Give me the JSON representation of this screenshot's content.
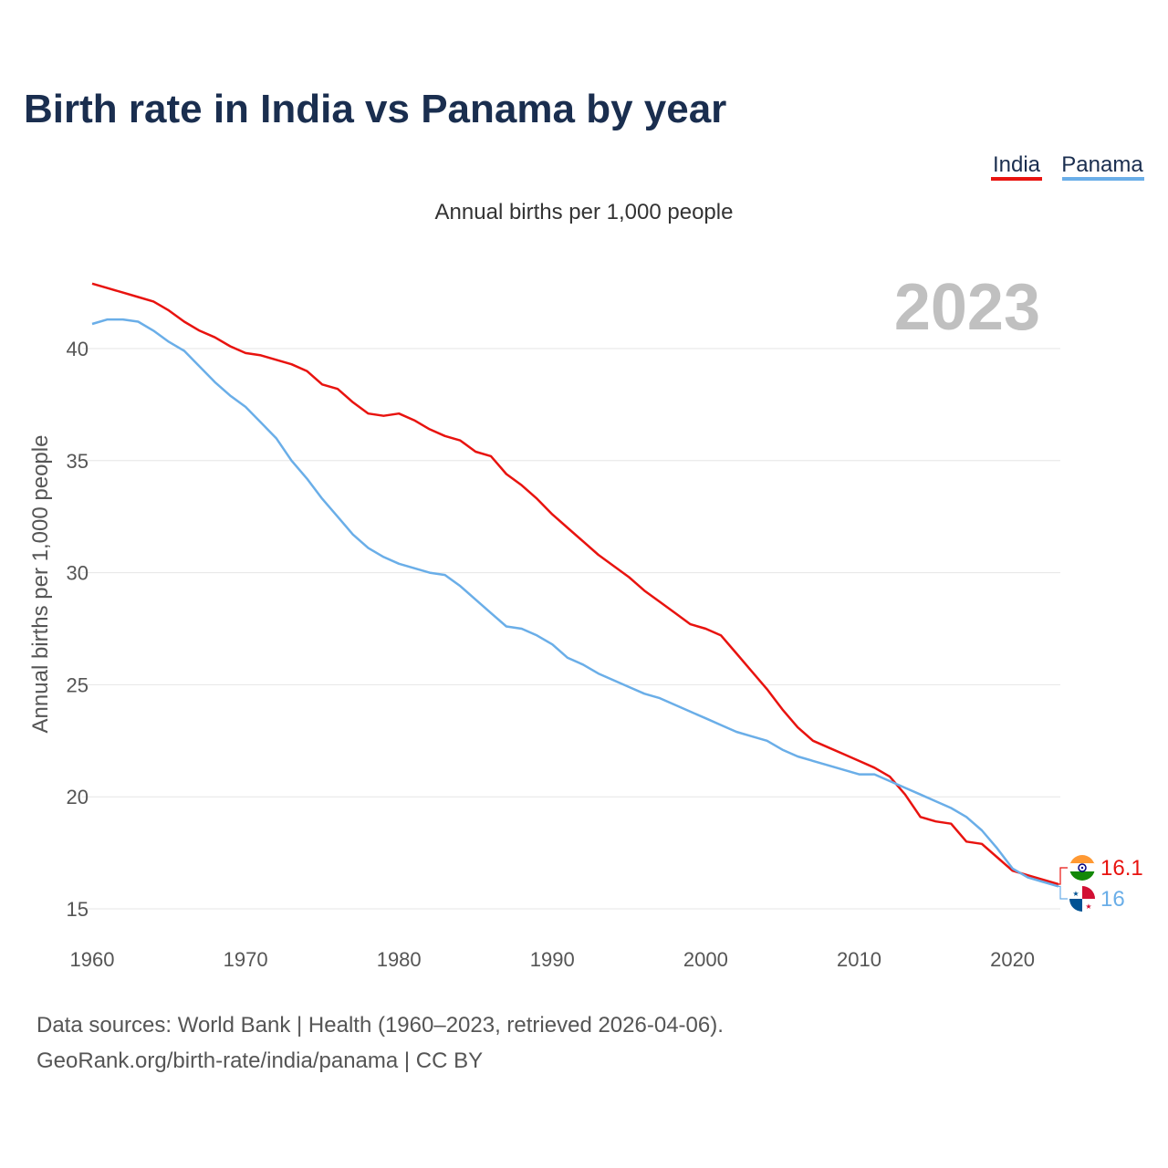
{
  "chart_data": {
    "type": "line",
    "title": "Birth rate in India vs Panama by year",
    "subtitle": "Annual births per 1,000 people",
    "xlabel": "",
    "ylabel": "Annual births per 1,000 people",
    "watermark_year": "2023",
    "xlim": [
      1960,
      2023
    ],
    "ylim": [
      15,
      43.5
    ],
    "x_ticks": [
      1960,
      1970,
      1980,
      1990,
      2000,
      2010,
      2020
    ],
    "y_ticks": [
      15,
      20,
      25,
      30,
      35,
      40
    ],
    "grid": true,
    "legend_position": "top-right",
    "x": [
      1960,
      1961,
      1962,
      1963,
      1964,
      1965,
      1966,
      1967,
      1968,
      1969,
      1970,
      1971,
      1972,
      1973,
      1974,
      1975,
      1976,
      1977,
      1978,
      1979,
      1980,
      1981,
      1982,
      1983,
      1984,
      1985,
      1986,
      1987,
      1988,
      1989,
      1990,
      1991,
      1992,
      1993,
      1994,
      1995,
      1996,
      1997,
      1998,
      1999,
      2000,
      2001,
      2002,
      2003,
      2004,
      2005,
      2006,
      2007,
      2008,
      2009,
      2010,
      2011,
      2012,
      2013,
      2014,
      2015,
      2016,
      2017,
      2018,
      2019,
      2020,
      2021,
      2022,
      2023
    ],
    "series": [
      {
        "name": "India",
        "color": "#e8130f",
        "end_label": "16.1",
        "flag": "india-flag",
        "values": [
          42.9,
          42.7,
          42.5,
          42.3,
          42.1,
          41.7,
          41.2,
          40.8,
          40.5,
          40.1,
          39.8,
          39.7,
          39.5,
          39.3,
          39.0,
          38.4,
          38.2,
          37.6,
          37.1,
          37.0,
          37.1,
          36.8,
          36.4,
          36.1,
          35.9,
          35.4,
          35.2,
          34.4,
          33.9,
          33.3,
          32.6,
          32.0,
          31.4,
          30.8,
          30.3,
          29.8,
          29.2,
          28.7,
          28.2,
          27.7,
          27.5,
          27.2,
          26.4,
          25.6,
          24.8,
          23.9,
          23.1,
          22.5,
          22.2,
          21.9,
          21.6,
          21.3,
          20.9,
          20.1,
          19.1,
          18.9,
          18.8,
          18.0,
          17.9,
          17.3,
          16.7,
          16.5,
          16.3,
          16.1
        ]
      },
      {
        "name": "Panama",
        "color": "#6aaee8",
        "end_label": "16",
        "flag": "panama-flag",
        "values": [
          41.1,
          41.3,
          41.3,
          41.2,
          40.8,
          40.3,
          39.9,
          39.2,
          38.5,
          37.9,
          37.4,
          36.7,
          36.0,
          35.0,
          34.2,
          33.3,
          32.5,
          31.7,
          31.1,
          30.7,
          30.4,
          30.2,
          30.0,
          29.9,
          29.4,
          28.8,
          28.2,
          27.6,
          27.5,
          27.2,
          26.8,
          26.2,
          25.9,
          25.5,
          25.2,
          24.9,
          24.6,
          24.4,
          24.1,
          23.8,
          23.5,
          23.2,
          22.9,
          22.7,
          22.5,
          22.1,
          21.8,
          21.6,
          21.4,
          21.2,
          21.0,
          21.0,
          20.7,
          20.4,
          20.1,
          19.8,
          19.5,
          19.1,
          18.5,
          17.7,
          16.8,
          16.4,
          16.2,
          16.0
        ]
      }
    ]
  },
  "source": {
    "line1": "Data sources: World Bank | Health (1960–2023, retrieved 2026-04-06).",
    "line2": "GeoRank.org/birth-rate/india/panama | CC BY"
  }
}
